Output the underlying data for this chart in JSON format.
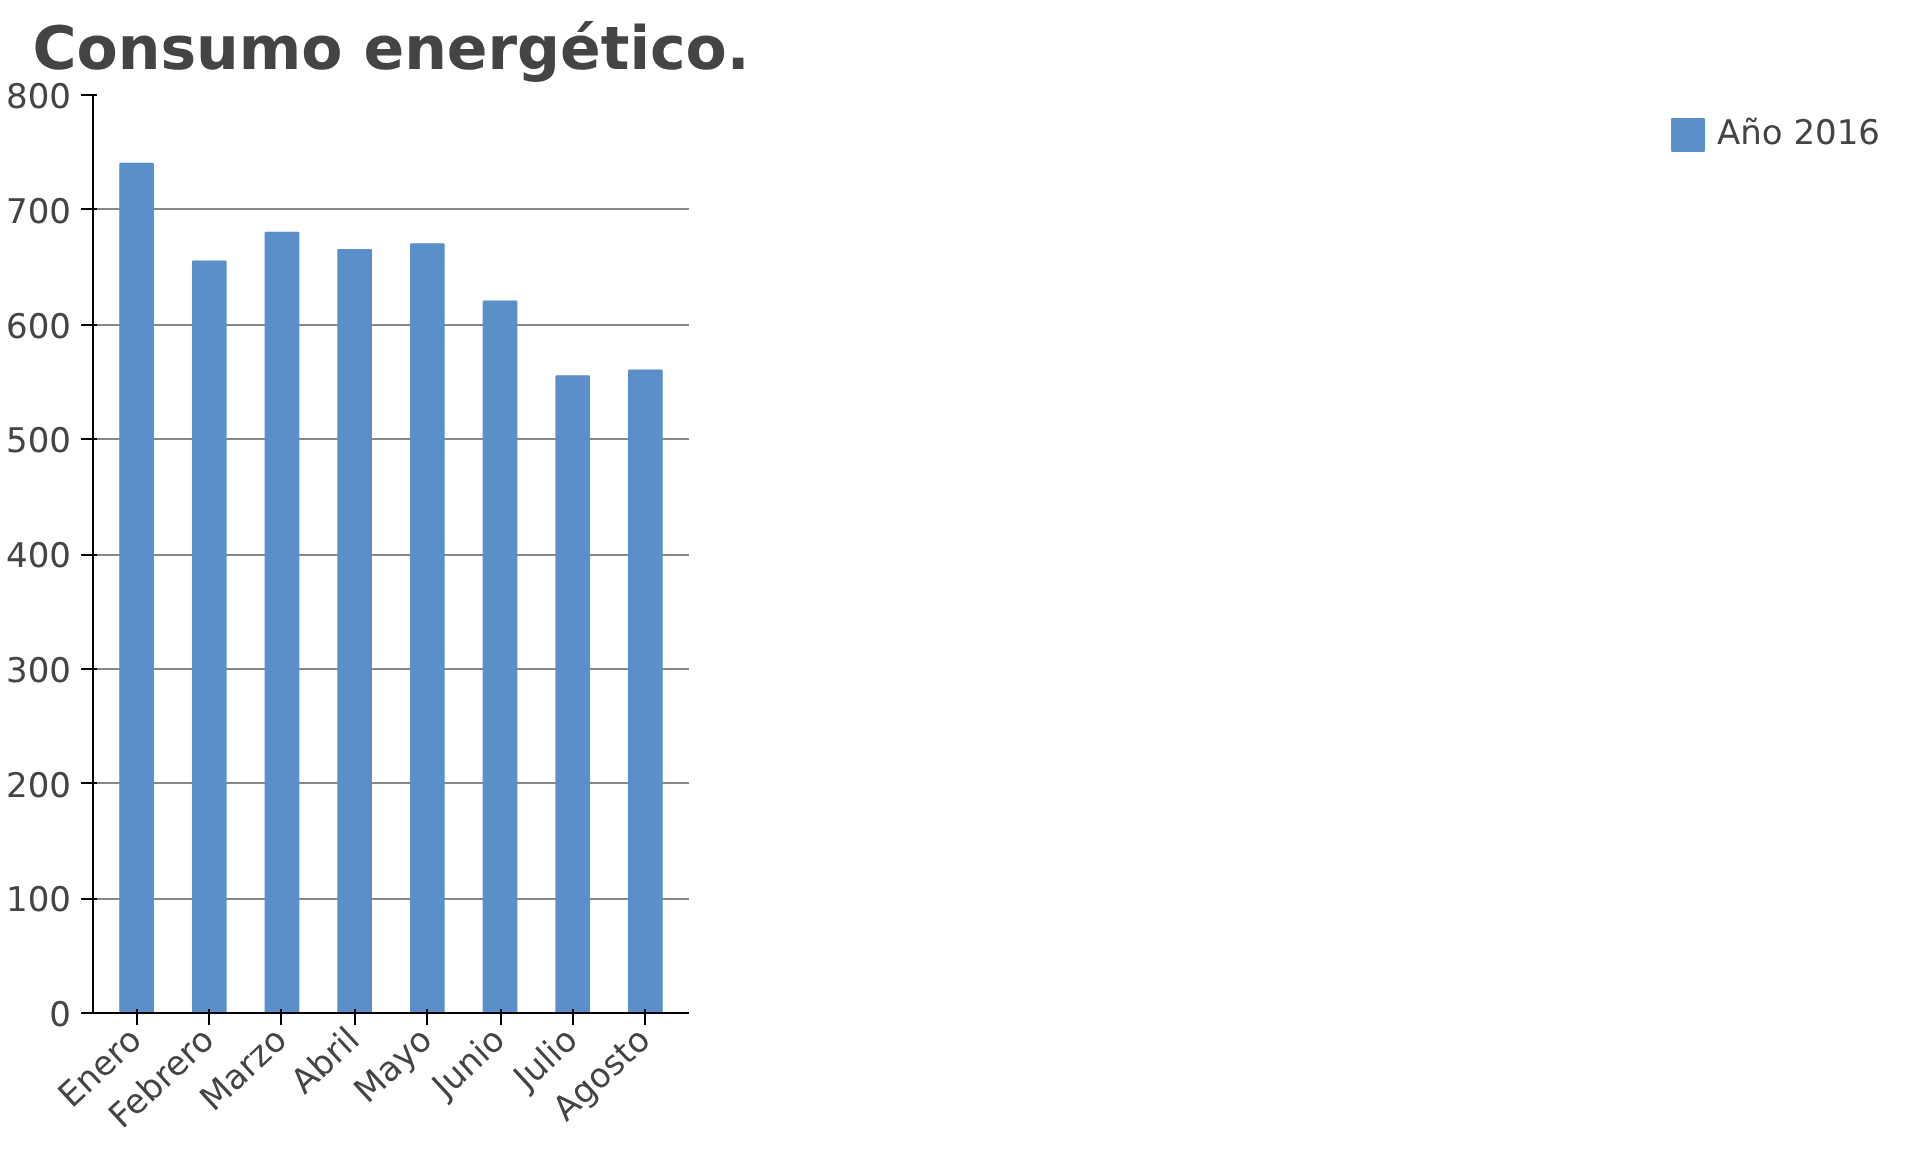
{
  "chart_data": {
    "type": "bar",
    "title": "Consumo energético.",
    "categories": [
      "Enero",
      "Febrero",
      "Marzo",
      "Abril",
      "Mayo",
      "Junio",
      "Julio",
      "Agosto"
    ],
    "series": [
      {
        "name": "Año 2016",
        "color": "#5b8fc9",
        "values": [
          740,
          655,
          680,
          665,
          670,
          620,
          555,
          560
        ]
      }
    ],
    "ylim": [
      0,
      800
    ],
    "yticks": [
      0,
      100,
      200,
      300,
      400,
      500,
      600,
      700,
      800
    ],
    "grid": "y",
    "legend": "right"
  }
}
